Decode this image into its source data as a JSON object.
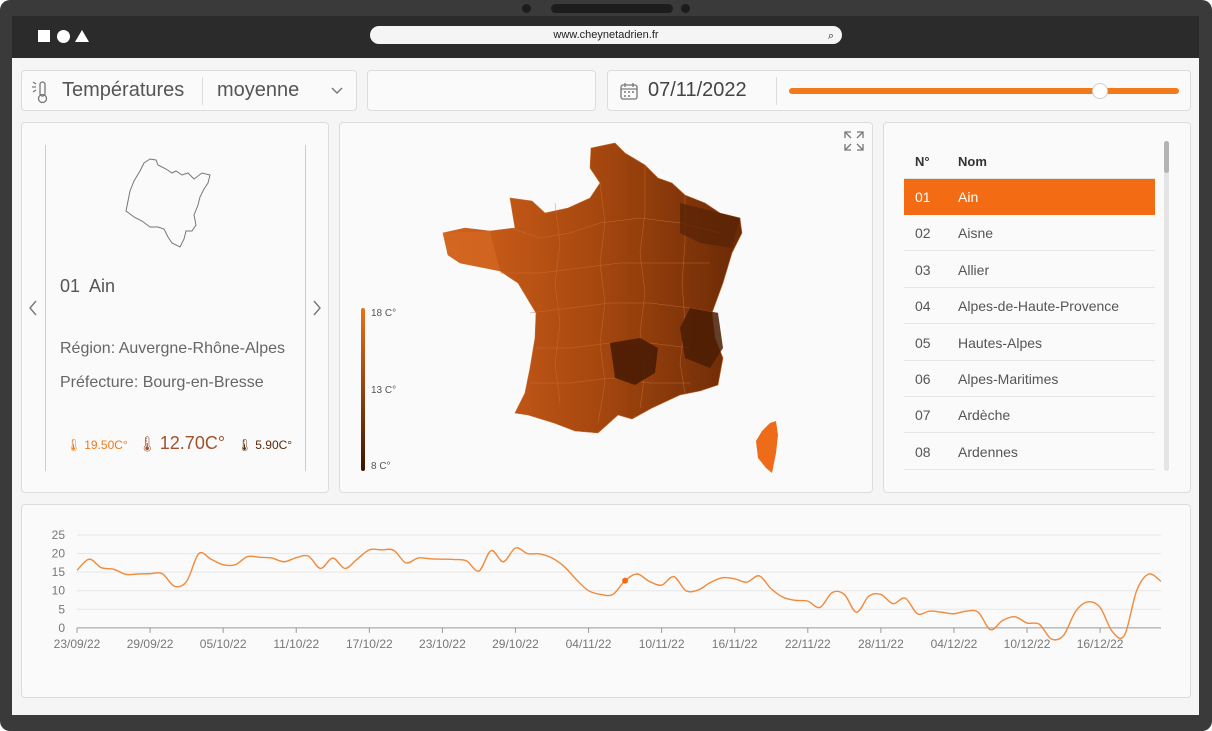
{
  "browser": {
    "url": "www.cheynetadrien.fr"
  },
  "controls": {
    "metric_label": "Températures",
    "stat_select": "moyenne",
    "date_value": "07/11/2022",
    "slider_position_pct": 79.7,
    "empty_field": ""
  },
  "department": {
    "code": "01",
    "name": "Ain",
    "region": "Région: Auvergne-Rhône-Alpes",
    "prefecture": "Préfecture: Bourg-en-Bresse",
    "temp_max": "19.50C°",
    "temp_avg": "12.70C°",
    "temp_min": "5.90C°"
  },
  "map": {
    "legend": {
      "high": "18 C°",
      "mid": "13 C°",
      "low": "8 C°"
    },
    "color_high": "#e8731a",
    "color_low": "#3c1500"
  },
  "table": {
    "headers": {
      "num": "N°",
      "name": "Nom"
    },
    "rows": [
      {
        "num": "01",
        "name": "Ain"
      },
      {
        "num": "02",
        "name": "Aisne"
      },
      {
        "num": "03",
        "name": "Allier"
      },
      {
        "num": "04",
        "name": "Alpes-de-Haute-Provence"
      },
      {
        "num": "05",
        "name": "Hautes-Alpes"
      },
      {
        "num": "06",
        "name": "Alpes-Maritimes"
      },
      {
        "num": "07",
        "name": "Ardèche"
      },
      {
        "num": "08",
        "name": "Ardennes"
      }
    ],
    "active_index": 0,
    "active_color": "#f36c14"
  },
  "chart_data": {
    "type": "line",
    "title": "",
    "xlabel": "",
    "ylabel": "",
    "ylim": [
      -3,
      25
    ],
    "yticks": [
      0,
      5,
      10,
      15,
      20,
      25
    ],
    "xtick_labels": [
      "23/09/22",
      "29/09/22",
      "05/10/22",
      "11/10/22",
      "17/10/22",
      "23/10/22",
      "29/10/22",
      "04/11/22",
      "10/11/22",
      "16/11/22",
      "22/11/22",
      "28/11/22",
      "04/12/22",
      "10/12/22",
      "16/12/22"
    ],
    "x_start": "23/09/22",
    "highlight": {
      "x": "07/11/22",
      "y": 12.7
    },
    "series": [
      {
        "color": "#f08a3c",
        "x": [
          "23/09/22",
          "24/09/22",
          "25/09/22",
          "26/09/22",
          "27/09/22",
          "28/09/22",
          "29/09/22",
          "30/09/22",
          "01/10/22",
          "02/10/22",
          "03/10/22",
          "04/10/22",
          "05/10/22",
          "06/10/22",
          "07/10/22",
          "08/10/22",
          "09/10/22",
          "10/10/22",
          "11/10/22",
          "12/10/22",
          "13/10/22",
          "14/10/22",
          "15/10/22",
          "16/10/22",
          "17/10/22",
          "18/10/22",
          "19/10/22",
          "20/10/22",
          "21/10/22",
          "22/10/22",
          "23/10/22",
          "24/10/22",
          "25/10/22",
          "26/10/22",
          "27/10/22",
          "28/10/22",
          "29/10/22",
          "30/10/22",
          "31/10/22",
          "01/11/22",
          "02/11/22",
          "03/11/22",
          "04/11/22",
          "05/11/22",
          "06/11/22",
          "07/11/22",
          "08/11/22",
          "09/11/22",
          "10/11/22",
          "11/11/22",
          "12/11/22",
          "13/11/22",
          "14/11/22",
          "15/11/22",
          "16/11/22",
          "17/11/22",
          "18/11/22",
          "19/11/22",
          "20/11/22",
          "21/11/22",
          "22/11/22",
          "23/11/22",
          "24/11/22",
          "25/11/22",
          "26/11/22",
          "27/11/22",
          "28/11/22",
          "29/11/22",
          "30/11/22",
          "01/12/22",
          "02/12/22",
          "03/12/22",
          "04/12/22",
          "05/12/22",
          "06/12/22",
          "07/12/22",
          "08/12/22",
          "09/12/22",
          "10/12/22",
          "11/12/22",
          "12/12/22",
          "13/12/22",
          "14/12/22",
          "15/12/22",
          "16/12/22",
          "17/12/22",
          "18/12/22",
          "19/12/22",
          "20/12/22",
          "21/12/22"
        ],
        "values": [
          15.5,
          18.5,
          16.2,
          15.8,
          14.4,
          14.5,
          14.6,
          14.6,
          11.2,
          12.5,
          20.0,
          18.5,
          17.0,
          17.0,
          19.2,
          19.0,
          18.8,
          17.8,
          18.9,
          19.3,
          16.0,
          18.8,
          16.0,
          18.5,
          21.0,
          21.0,
          20.9,
          17.5,
          18.8,
          18.6,
          18.5,
          18.4,
          18.0,
          15.3,
          20.8,
          17.8,
          21.5,
          20.0,
          19.9,
          18.8,
          16.5,
          13.0,
          10.0,
          9.0,
          9.0,
          12.7,
          14.5,
          12.5,
          11.5,
          13.8,
          10.0,
          10.2,
          12.2,
          13.5,
          13.2,
          12.3,
          14.0,
          10.5,
          8.2,
          7.4,
          7.2,
          5.5,
          9.5,
          9.0,
          4.2,
          8.5,
          9.0,
          6.5,
          8.0,
          3.8,
          4.5,
          4.2,
          3.8,
          4.5,
          4.2,
          -0.5,
          2.0,
          3.0,
          1.3,
          1.0,
          -3.0,
          -2.0,
          4.5,
          7.0,
          5.5,
          -1.0,
          -2.0,
          10.0,
          14.5,
          12.5
        ]
      }
    ]
  }
}
